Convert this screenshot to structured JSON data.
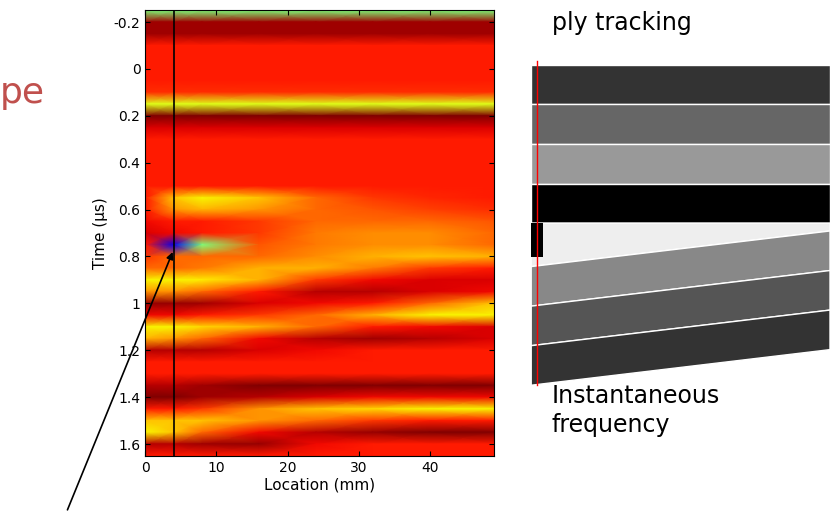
{
  "chart_data": {
    "type": "heatmap",
    "x_label": "Location (mm)",
    "y_label": "Time (μs)",
    "xlim": [
      0,
      49
    ],
    "ylim": [
      1.65,
      -0.25
    ],
    "xticks": [
      0,
      10,
      20,
      30,
      40
    ],
    "yticks": [
      -0.2,
      0,
      0.2,
      0.4,
      0.6,
      0.8,
      1,
      1.2,
      1.4,
      1.6
    ],
    "color_range": [
      0,
      1
    ],
    "marker_line_x": 4,
    "arrow_point": [
      4,
      0.77
    ],
    "annotations": [
      "pe",
      "ply tracking",
      "Instantaneous\nfrequency"
    ],
    "cell_x": [
      0,
      4,
      8,
      16,
      24,
      32,
      40,
      49
    ],
    "cell_y": [
      -0.25,
      -0.2,
      -0.15,
      -0.1,
      -0.05,
      0,
      0.05,
      0.1,
      0.15,
      0.2,
      0.25,
      0.3,
      0.35,
      0.4,
      0.45,
      0.5,
      0.55,
      0.6,
      0.65,
      0.7,
      0.75,
      0.8,
      0.85,
      0.9,
      0.95,
      1.0,
      1.05,
      1.1,
      1.15,
      1.2,
      1.25,
      1.3,
      1.35,
      1.4,
      1.45,
      1.5,
      1.55,
      1.6,
      1.65
    ],
    "cells": [
      [
        0.5,
        0.5,
        0.5,
        0.5,
        0.5,
        0.5,
        0.5,
        0.5
      ],
      [
        0.97,
        0.97,
        0.97,
        0.97,
        0.97,
        0.97,
        0.97,
        0.97
      ],
      [
        0.97,
        0.97,
        0.97,
        0.97,
        0.97,
        0.97,
        0.97,
        0.97
      ],
      [
        0.88,
        0.88,
        0.88,
        0.88,
        0.88,
        0.88,
        0.88,
        0.88
      ],
      [
        0.88,
        0.88,
        0.88,
        0.88,
        0.88,
        0.88,
        0.88,
        0.88
      ],
      [
        0.88,
        0.88,
        0.88,
        0.88,
        0.88,
        0.88,
        0.88,
        0.88
      ],
      [
        0.88,
        0.88,
        0.88,
        0.88,
        0.88,
        0.88,
        0.88,
        0.88
      ],
      [
        0.86,
        0.86,
        0.86,
        0.86,
        0.86,
        0.86,
        0.86,
        0.86
      ],
      [
        0.62,
        0.62,
        0.62,
        0.62,
        0.62,
        0.62,
        0.62,
        0.62
      ],
      [
        1.0,
        1.0,
        1.0,
        1.0,
        1.0,
        1.0,
        1.0,
        1.0
      ],
      [
        0.92,
        0.92,
        0.92,
        0.92,
        0.92,
        0.92,
        0.92,
        0.92
      ],
      [
        0.88,
        0.88,
        0.88,
        0.88,
        0.88,
        0.88,
        0.88,
        0.88
      ],
      [
        0.88,
        0.88,
        0.88,
        0.88,
        0.88,
        0.88,
        0.88,
        0.88
      ],
      [
        0.88,
        0.88,
        0.88,
        0.88,
        0.88,
        0.88,
        0.88,
        0.88
      ],
      [
        0.88,
        0.88,
        0.88,
        0.88,
        0.88,
        0.88,
        0.88,
        0.88
      ],
      [
        0.88,
        0.88,
        0.88,
        0.88,
        0.88,
        0.88,
        0.88,
        0.88
      ],
      [
        0.88,
        0.7,
        0.65,
        0.7,
        0.8,
        0.85,
        0.87,
        0.88
      ],
      [
        0.88,
        0.75,
        0.72,
        0.75,
        0.8,
        0.82,
        0.84,
        0.86
      ],
      [
        0.9,
        0.88,
        0.88,
        0.85,
        0.8,
        0.8,
        0.8,
        0.82
      ],
      [
        0.92,
        0.9,
        0.88,
        0.85,
        0.78,
        0.76,
        0.76,
        0.8
      ],
      [
        0.88,
        0.1,
        0.5,
        0.82,
        0.78,
        0.76,
        0.76,
        0.8
      ],
      [
        0.85,
        0.8,
        0.8,
        0.8,
        0.76,
        0.72,
        0.7,
        0.72
      ],
      [
        0.8,
        0.8,
        0.78,
        0.72,
        0.72,
        0.78,
        0.85,
        0.88
      ],
      [
        0.65,
        0.65,
        0.66,
        0.72,
        0.85,
        0.9,
        0.92,
        0.92
      ],
      [
        0.75,
        0.76,
        0.8,
        0.88,
        0.95,
        0.95,
        0.92,
        0.9
      ],
      [
        0.98,
        0.98,
        0.97,
        0.92,
        0.9,
        0.88,
        0.8,
        0.7
      ],
      [
        0.9,
        0.9,
        0.88,
        0.85,
        0.8,
        0.72,
        0.65,
        0.65
      ],
      [
        0.65,
        0.65,
        0.68,
        0.72,
        0.8,
        0.88,
        0.9,
        0.92
      ],
      [
        0.72,
        0.75,
        0.8,
        0.9,
        0.95,
        0.97,
        0.95,
        0.92
      ],
      [
        0.95,
        0.95,
        0.95,
        0.92,
        0.9,
        0.88,
        0.88,
        0.88
      ],
      [
        0.88,
        0.88,
        0.88,
        0.88,
        0.88,
        0.88,
        0.88,
        0.88
      ],
      [
        0.88,
        0.88,
        0.88,
        0.88,
        0.88,
        0.88,
        0.88,
        0.88
      ],
      [
        0.95,
        0.95,
        0.97,
        1.0,
        1.0,
        1.0,
        1.0,
        1.0
      ],
      [
        1.0,
        1.0,
        0.97,
        0.95,
        0.92,
        0.9,
        0.9,
        0.9
      ],
      [
        0.88,
        0.88,
        0.85,
        0.75,
        0.7,
        0.68,
        0.65,
        0.65
      ],
      [
        0.7,
        0.7,
        0.7,
        0.75,
        0.8,
        0.85,
        0.88,
        0.88
      ],
      [
        0.65,
        0.7,
        0.8,
        0.9,
        0.95,
        0.98,
        1.0,
        1.0
      ],
      [
        0.95,
        0.95,
        0.97,
        0.98,
        0.9,
        0.88,
        0.88,
        0.88
      ],
      [
        0.88,
        0.88,
        0.88,
        0.88,
        0.88,
        0.88,
        0.88,
        0.88
      ]
    ]
  }
}
